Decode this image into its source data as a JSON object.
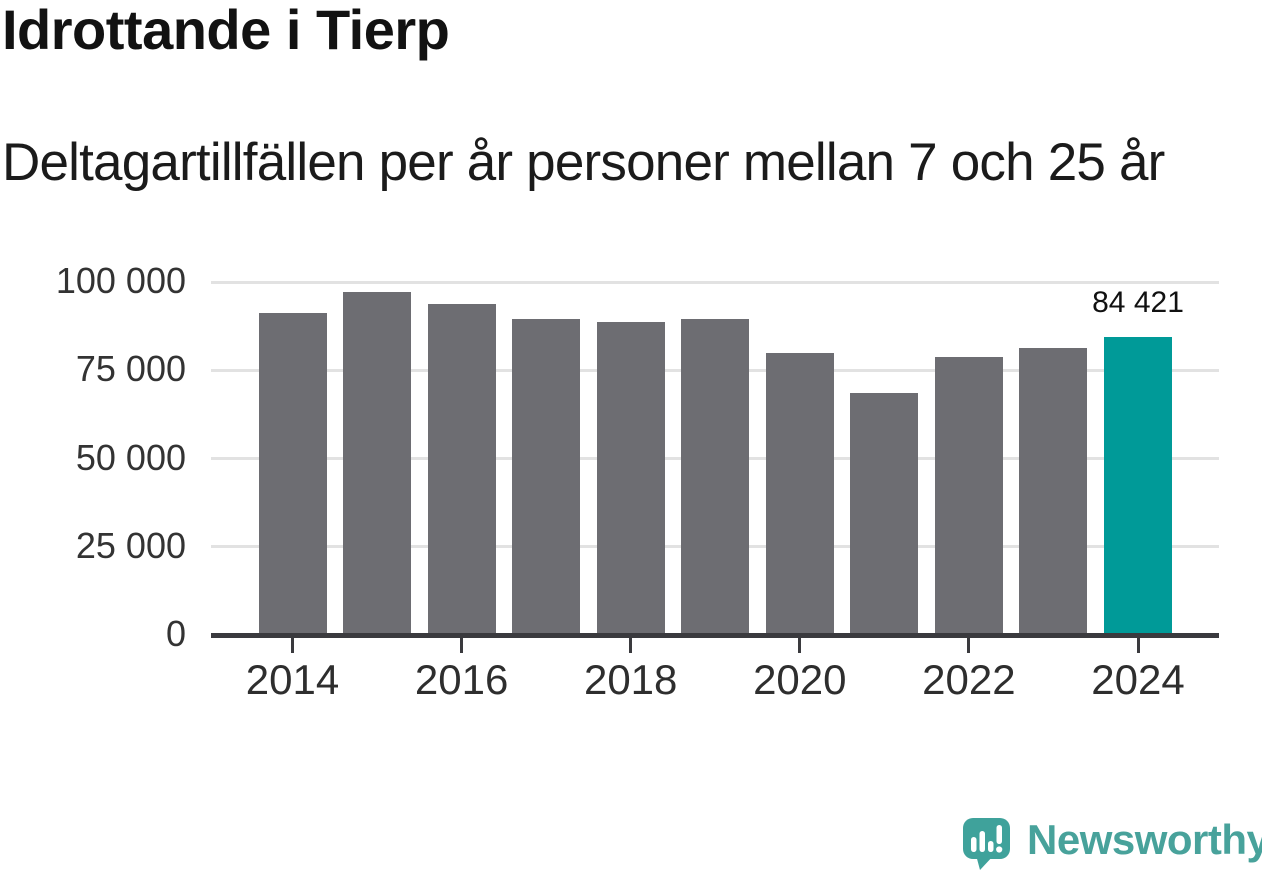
{
  "header": {
    "title": "Idrottande i Tierp",
    "subtitle": "Deltagartillfällen per år personer mellan 7 och 25 år"
  },
  "chart_data": {
    "type": "bar",
    "title": "Idrottande i Tierp",
    "subtitle": "Deltagartillfällen per år personer mellan 7 och 25 år",
    "categories": [
      "2014",
      "2015",
      "2016",
      "2017",
      "2018",
      "2019",
      "2020",
      "2021",
      "2022",
      "2023",
      "2024"
    ],
    "values": [
      91100,
      97200,
      93700,
      89500,
      88700,
      89500,
      79900,
      68600,
      78800,
      81300,
      84421
    ],
    "value_precision_note": "2024 value labeled exactly on chart; other values estimated from bar heights",
    "highlight_index": 10,
    "annotation": {
      "text": "84 421",
      "category": "2024"
    },
    "xlabel": "",
    "ylabel": "",
    "ylim": [
      0,
      100000
    ],
    "grid": "horizontal",
    "legend": "none",
    "y_ticks": [
      {
        "value": 100000,
        "label": "100 000"
      },
      {
        "value": 75000,
        "label": "75 000"
      },
      {
        "value": 50000,
        "label": "50 000"
      },
      {
        "value": 25000,
        "label": "25 000"
      },
      {
        "value": 0,
        "label": "0"
      }
    ],
    "x_ticks": [
      {
        "index": 0,
        "label": "2014"
      },
      {
        "index": 2,
        "label": "2016"
      },
      {
        "index": 4,
        "label": "2018"
      },
      {
        "index": 6,
        "label": "2020"
      },
      {
        "index": 8,
        "label": "2022"
      },
      {
        "index": 10,
        "label": "2024"
      }
    ],
    "colors": {
      "bar": "#6d6d72",
      "highlight": "#009a98",
      "gridline": "#e2e2e2",
      "axis": "#3a3a3e",
      "tick_label": "#2e2e2e"
    }
  },
  "footer": {
    "logo_text": "Newsworthy",
    "logo_color": "#48a29b",
    "logo_icon": "bar-chart-speech-bubble"
  }
}
